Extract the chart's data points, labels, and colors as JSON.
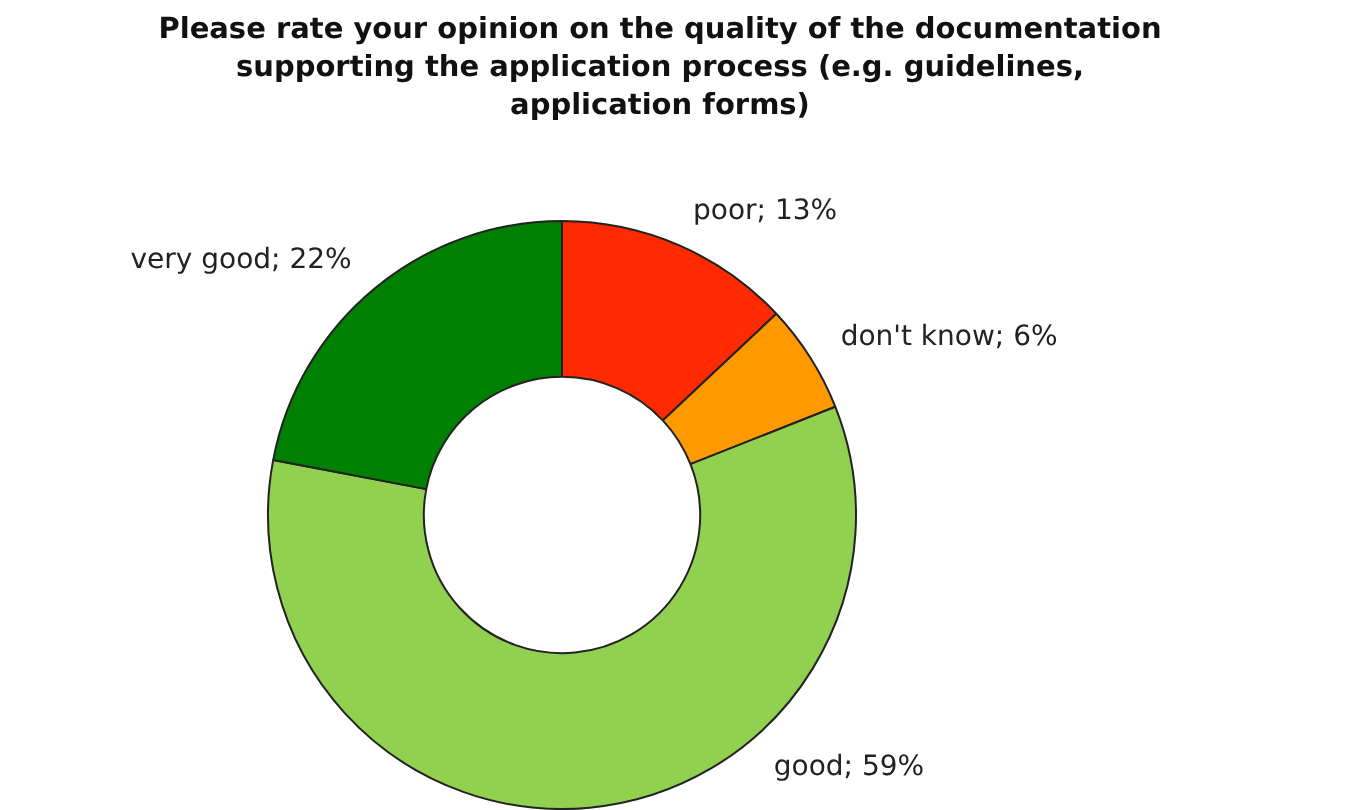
{
  "chart_data": {
    "type": "donut",
    "title": "Please rate your opinion on the quality of the documentation supporting the application process (e.g. guidelines, application forms)",
    "categories": [
      "poor",
      "don't know",
      "good",
      "very good"
    ],
    "values": [
      13,
      6,
      59,
      22
    ],
    "colors": [
      "#ff2a00",
      "#ff9900",
      "#92d050",
      "#008000"
    ],
    "value_labels": [
      "13%",
      "6%",
      "59%",
      "22%"
    ],
    "legend": false
  }
}
